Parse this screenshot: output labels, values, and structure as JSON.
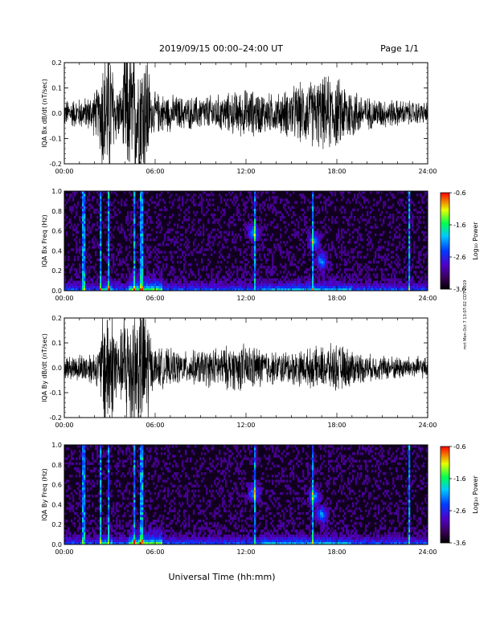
{
  "page": {
    "title": "2019/09/15  00:00–24:00 UT",
    "page_label": "Page 1/1",
    "footer_xlabel": "Universal Time (hh:mm)",
    "side_note": "mrt Mon Oct 7 13:07:02 CDT 2019"
  },
  "chart_data": [
    {
      "type": "line",
      "ylabel": "IQA Bx dB/dt (nT/sec)",
      "xlabel": "",
      "x_ticks": [
        "00:00",
        "06:00",
        "12:00",
        "18:00",
        "24:00"
      ],
      "xlim_hours": [
        0,
        24
      ],
      "ylim": [
        -0.2,
        0.2
      ],
      "y_ticks": [
        "0.2",
        "0.1",
        "0.0",
        "-0.1",
        "-0.2"
      ],
      "series": [
        {
          "amplitude_envelope": [
            {
              "t": 0,
              "a": 0.05
            },
            {
              "t": 1.5,
              "a": 0.06
            },
            {
              "t": 2.3,
              "a": 0.1
            },
            {
              "t": 2.5,
              "a": 0.25
            },
            {
              "t": 3.1,
              "a": 0.25
            },
            {
              "t": 3.3,
              "a": 0.12
            },
            {
              "t": 3.8,
              "a": 0.09
            },
            {
              "t": 4.0,
              "a": 0.25
            },
            {
              "t": 5.5,
              "a": 0.25
            },
            {
              "t": 5.7,
              "a": 0.08
            },
            {
              "t": 8.0,
              "a": 0.06
            },
            {
              "t": 10.5,
              "a": 0.07
            },
            {
              "t": 12.0,
              "a": 0.09
            },
            {
              "t": 14.0,
              "a": 0.07
            },
            {
              "t": 15.5,
              "a": 0.11
            },
            {
              "t": 17.5,
              "a": 0.14
            },
            {
              "t": 18.5,
              "a": 0.12
            },
            {
              "t": 20.0,
              "a": 0.06
            },
            {
              "t": 24.0,
              "a": 0.04
            }
          ]
        }
      ]
    },
    {
      "type": "heatmap",
      "ylabel": "IQA Bx Freq (Hz)",
      "x_ticks": [
        "00:00",
        "06:00",
        "12:00",
        "18:00",
        "24:00"
      ],
      "xlim_hours": [
        0,
        24
      ],
      "ylim": [
        0,
        1.0
      ],
      "y_ticks": [
        "1.0",
        "0.8",
        "0.6",
        "0.4",
        "0.2",
        "0.0"
      ],
      "colorbar": {
        "label": "Log₁₀ Power",
        "range": [
          -3.6,
          -0.6
        ],
        "ticks": [
          "-0.6",
          "-1.6",
          "-2.6",
          "-3.6"
        ]
      },
      "features": {
        "vertical_bursts_hours": [
          1.3,
          2.4,
          2.9,
          4.6,
          5.1,
          12.6,
          16.4,
          22.8
        ],
        "patch_hours_freq": [
          [
            12.5,
            0.58
          ],
          [
            16.5,
            0.5
          ],
          [
            17.0,
            0.3
          ]
        ]
      }
    },
    {
      "type": "line",
      "ylabel": "IQA By dB/dt (nT/sec)",
      "xlabel": "",
      "x_ticks": [
        "00:00",
        "06:00",
        "12:00",
        "18:00",
        "24:00"
      ],
      "xlim_hours": [
        0,
        24
      ],
      "ylim": [
        -0.2,
        0.2
      ],
      "y_ticks": [
        "0.2",
        "0.1",
        "0.0",
        "-0.1",
        "-0.2"
      ],
      "series": [
        {
          "amplitude_envelope": [
            {
              "t": 0,
              "a": 0.04
            },
            {
              "t": 2.3,
              "a": 0.07
            },
            {
              "t": 2.6,
              "a": 0.25
            },
            {
              "t": 3.3,
              "a": 0.25
            },
            {
              "t": 3.6,
              "a": 0.08
            },
            {
              "t": 4.0,
              "a": 0.25
            },
            {
              "t": 5.5,
              "a": 0.25
            },
            {
              "t": 5.8,
              "a": 0.08
            },
            {
              "t": 8.0,
              "a": 0.06
            },
            {
              "t": 12.0,
              "a": 0.09
            },
            {
              "t": 14.0,
              "a": 0.06
            },
            {
              "t": 16.0,
              "a": 0.07
            },
            {
              "t": 18.0,
              "a": 0.09
            },
            {
              "t": 20.0,
              "a": 0.05
            },
            {
              "t": 24.0,
              "a": 0.04
            }
          ]
        }
      ]
    },
    {
      "type": "heatmap",
      "ylabel": "IQA By Freq (Hz)",
      "x_ticks": [
        "00:00",
        "06:00",
        "12:00",
        "18:00",
        "24:00"
      ],
      "xlim_hours": [
        0,
        24
      ],
      "ylim": [
        0,
        1.0
      ],
      "y_ticks": [
        "1.0",
        "0.8",
        "0.6",
        "0.4",
        "0.2",
        "0.0"
      ],
      "colorbar": {
        "label": "Log₁₀ Power",
        "range": [
          -3.6,
          -0.6
        ],
        "ticks": [
          "-0.6",
          "-1.6",
          "-2.6",
          "-3.6"
        ]
      },
      "features": {
        "vertical_bursts_hours": [
          1.3,
          2.4,
          2.9,
          4.6,
          5.1,
          12.6,
          16.4,
          22.8
        ],
        "patch_hours_freq": [
          [
            12.5,
            0.52
          ],
          [
            16.5,
            0.48
          ],
          [
            17.0,
            0.3
          ]
        ]
      }
    }
  ]
}
